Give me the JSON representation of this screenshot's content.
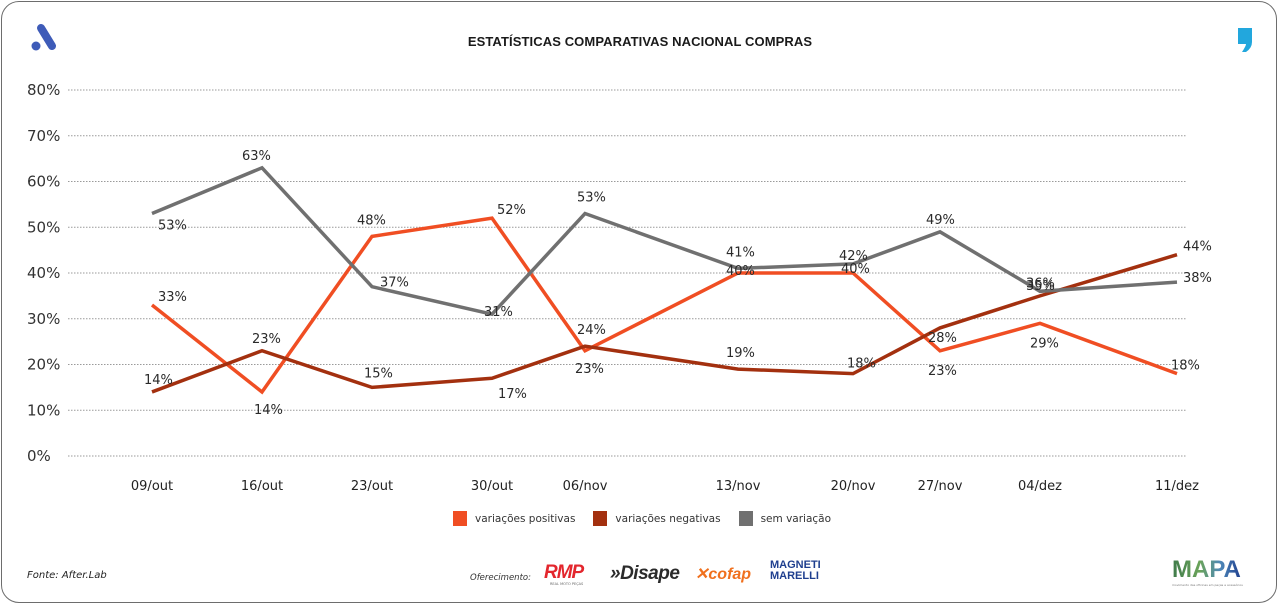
{
  "header": {
    "title": "ESTATÍSTICAS COMPARATIVAS NACIONAL COMPRAS",
    "left_logo_icon": "a-logo-icon",
    "right_logo_icon": "comma-logo-icon"
  },
  "colors": {
    "positivas": "#f04e23",
    "negativas": "#a3300f",
    "sem_variacao": "#707070",
    "logo_a": "#3e5bb8",
    "logo_comma": "#22a7dd"
  },
  "chart_data": {
    "type": "line",
    "title": "ESTATÍSTICAS COMPARATIVAS NACIONAL COMPRAS",
    "xlabel": "",
    "ylabel": "",
    "ylim": [
      0,
      80
    ],
    "yticks": [
      0,
      10,
      20,
      30,
      40,
      50,
      60,
      70,
      80
    ],
    "ytick_labels": [
      "0%",
      "10%",
      "20%",
      "30%",
      "40%",
      "50%",
      "60%",
      "70%",
      "80%"
    ],
    "grid": true,
    "legend_position": "bottom-center",
    "categories": [
      "09/out",
      "16/out",
      "23/out",
      "30/out",
      "06/nov",
      "13/nov",
      "20/nov",
      "27/nov",
      "04/dez",
      "11/dez"
    ],
    "series": [
      {
        "name": "variações positivas",
        "key": "positivas",
        "values": [
          33,
          14,
          48,
          52,
          23,
          40,
          40,
          23,
          29,
          18
        ]
      },
      {
        "name": "variações negativas",
        "key": "negativas",
        "values": [
          14,
          23,
          15,
          17,
          24,
          19,
          18,
          28,
          35,
          44
        ]
      },
      {
        "name": "sem variação",
        "key": "sem_variacao",
        "values": [
          53,
          63,
          37,
          31,
          53,
          41,
          42,
          49,
          36,
          38
        ]
      }
    ],
    "value_suffix": "%"
  },
  "legend": {
    "items": [
      {
        "label": "variações positivas",
        "color": "#f04e23"
      },
      {
        "label": "variações negativas",
        "color": "#a3300f"
      },
      {
        "label": "sem variação",
        "color": "#707070"
      }
    ]
  },
  "footer": {
    "source": "Fonte: After.Lab",
    "offered_by": "Oferecimento:",
    "sponsors": [
      "RMP",
      "Disape",
      "cofap",
      "MAGNETI MARELLI"
    ],
    "rmp_sub": "REAL MOTO PEÇAS",
    "mapa": "MAPA",
    "mapa_sub": "movimento das oficinas em peças e acessórios"
  }
}
